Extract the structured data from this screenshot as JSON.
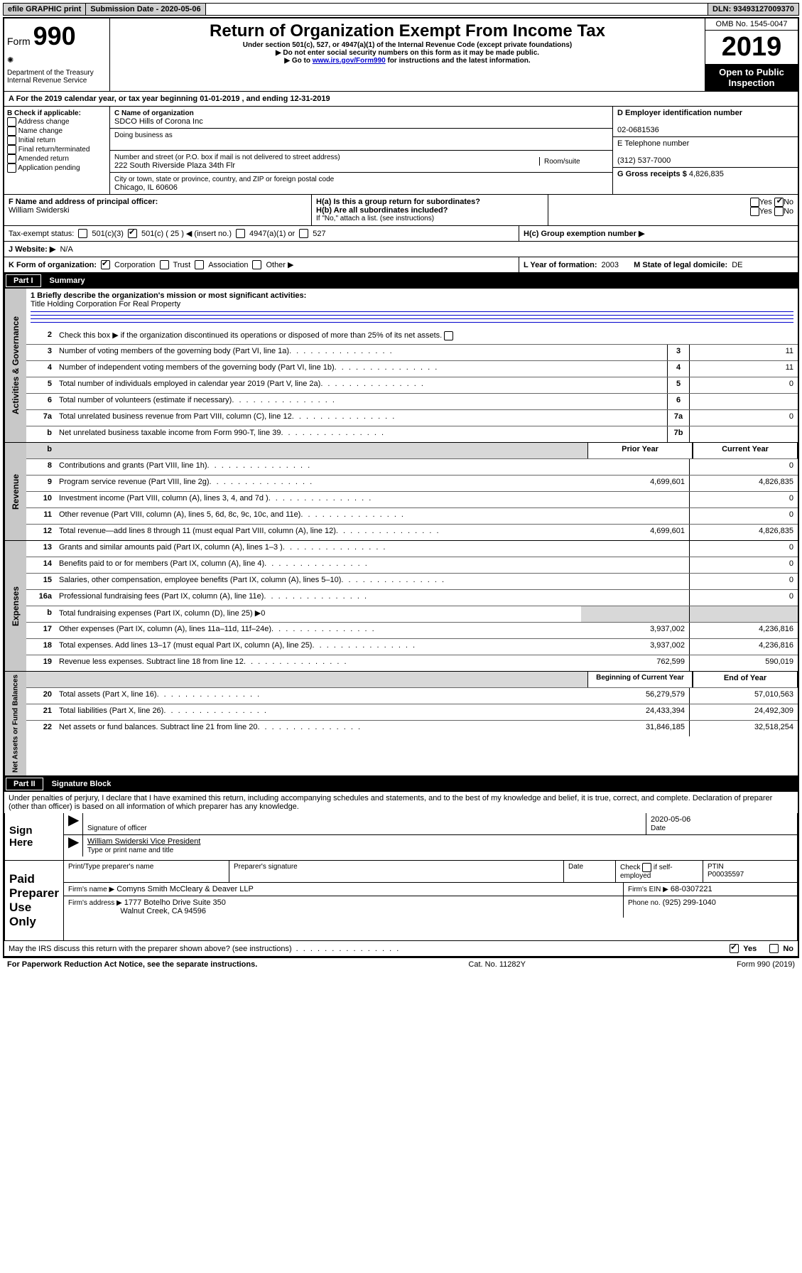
{
  "topbar": {
    "efile": "efile GRAPHIC print",
    "submission_label": "Submission Date - 2020-05-06",
    "dln_label": "DLN: 93493127009370"
  },
  "header": {
    "form_label": "Form",
    "form_number": "990",
    "dept": "Department of the Treasury",
    "irs": "Internal Revenue Service",
    "title": "Return of Organization Exempt From Income Tax",
    "subtitle": "Under section 501(c), 527, or 4947(a)(1) of the Internal Revenue Code (except private foundations)",
    "note1": "▶ Do not enter social security numbers on this form as it may be made public.",
    "note2a": "▶ Go to ",
    "note2_link": "www.irs.gov/Form990",
    "note2b": " for instructions and the latest information.",
    "omb": "OMB No. 1545-0047",
    "year": "2019",
    "open": "Open to Public Inspection"
  },
  "line_a": "A For the 2019 calendar year, or tax year beginning 01-01-2019   , and ending 12-31-2019",
  "box_b": {
    "title": "B Check if applicable:",
    "opts": [
      "Address change",
      "Name change",
      "Initial return",
      "Final return/terminated",
      "Amended return",
      "Application pending"
    ]
  },
  "box_c": {
    "label_name": "C Name of organization",
    "name": "SDCO Hills of Corona Inc",
    "dba_label": "Doing business as",
    "addr_label": "Number and street (or P.O. box if mail is not delivered to street address)",
    "room": "Room/suite",
    "addr": "222 South Riverside Plaza 34th Flr",
    "city_label": "City or town, state or province, country, and ZIP or foreign postal code",
    "city": "Chicago, IL  60606"
  },
  "box_d": {
    "label": "D Employer identification number",
    "val": "02-0681536"
  },
  "box_e": {
    "label": "E Telephone number",
    "val": "(312) 537-7000"
  },
  "box_g": {
    "label": "G Gross receipts $",
    "val": "4,826,835"
  },
  "box_f": {
    "label": "F  Name and address of principal officer:",
    "val": "William Swiderski"
  },
  "box_h": {
    "ha": "H(a)  Is this a group return for subordinates?",
    "hb": "H(b)  Are all subordinates included?",
    "hb_note": "If \"No,\" attach a list. (see instructions)",
    "hc": "H(c)  Group exemption number ▶",
    "yes": "Yes",
    "no": "No"
  },
  "tax_exempt": {
    "label": "Tax-exempt status:",
    "c3": "501(c)(3)",
    "c_ins": "501(c) ( 25 ) ◀ (insert no.)",
    "a1": "4947(a)(1) or",
    "s527": "527"
  },
  "website": {
    "label": "J   Website: ▶",
    "val": "N/A"
  },
  "line_k": {
    "label": "K Form of organization:",
    "opts": [
      "Corporation",
      "Trust",
      "Association",
      "Other ▶"
    ]
  },
  "line_l": {
    "label": "L Year of formation:",
    "val": "2003"
  },
  "line_m": {
    "label": "M State of legal domicile:",
    "val": "DE"
  },
  "part1": {
    "label": "Part I",
    "title": "Summary"
  },
  "summary": {
    "vert1": "Activities & Governance",
    "q1_label": "1  Briefly describe the organization's mission or most significant activities:",
    "q1_val": "Title Holding Corporation For Real Property",
    "q2": "Check this box ▶        if the organization discontinued its operations or disposed of more than 25% of its net assets.",
    "lines_gov": [
      {
        "n": "3",
        "t": "Number of voting members of the governing body (Part VI, line 1a)",
        "ln": "3",
        "v": "11"
      },
      {
        "n": "4",
        "t": "Number of independent voting members of the governing body (Part VI, line 1b)",
        "ln": "4",
        "v": "11"
      },
      {
        "n": "5",
        "t": "Total number of individuals employed in calendar year 2019 (Part V, line 2a)",
        "ln": "5",
        "v": "0"
      },
      {
        "n": "6",
        "t": "Total number of volunteers (estimate if necessary)",
        "ln": "6",
        "v": ""
      },
      {
        "n": "7a",
        "t": "Total unrelated business revenue from Part VIII, column (C), line 12",
        "ln": "7a",
        "v": "0"
      },
      {
        "n": "b",
        "t": "Net unrelated business taxable income from Form 990-T, line 39",
        "ln": "7b",
        "v": ""
      }
    ],
    "vert2": "Revenue",
    "col_prior": "Prior Year",
    "col_current": "Current Year",
    "lines_rev": [
      {
        "n": "8",
        "t": "Contributions and grants (Part VIII, line 1h)",
        "p": "",
        "c": "0"
      },
      {
        "n": "9",
        "t": "Program service revenue (Part VIII, line 2g)",
        "p": "4,699,601",
        "c": "4,826,835"
      },
      {
        "n": "10",
        "t": "Investment income (Part VIII, column (A), lines 3, 4, and 7d )",
        "p": "",
        "c": "0"
      },
      {
        "n": "11",
        "t": "Other revenue (Part VIII, column (A), lines 5, 6d, 8c, 9c, 10c, and 11e)",
        "p": "",
        "c": "0"
      },
      {
        "n": "12",
        "t": "Total revenue—add lines 8 through 11 (must equal Part VIII, column (A), line 12)",
        "p": "4,699,601",
        "c": "4,826,835"
      }
    ],
    "vert3": "Expenses",
    "lines_exp": [
      {
        "n": "13",
        "t": "Grants and similar amounts paid (Part IX, column (A), lines 1–3 )",
        "p": "",
        "c": "0"
      },
      {
        "n": "14",
        "t": "Benefits paid to or for members (Part IX, column (A), line 4)",
        "p": "",
        "c": "0"
      },
      {
        "n": "15",
        "t": "Salaries, other compensation, employee benefits (Part IX, column (A), lines 5–10)",
        "p": "",
        "c": "0"
      },
      {
        "n": "16a",
        "t": "Professional fundraising fees (Part IX, column (A), line 11e)",
        "p": "",
        "c": "0"
      },
      {
        "n": "b",
        "t": "Total fundraising expenses (Part IX, column (D), line 25) ▶0",
        "shade": true
      },
      {
        "n": "17",
        "t": "Other expenses (Part IX, column (A), lines 11a–11d, 11f–24e)",
        "p": "3,937,002",
        "c": "4,236,816"
      },
      {
        "n": "18",
        "t": "Total expenses. Add lines 13–17 (must equal Part IX, column (A), line 25)",
        "p": "3,937,002",
        "c": "4,236,816"
      },
      {
        "n": "19",
        "t": "Revenue less expenses. Subtract line 18 from line 12",
        "p": "762,599",
        "c": "590,019"
      }
    ],
    "vert4": "Net Assets or Fund Balances",
    "col_begin": "Beginning of Current Year",
    "col_end": "End of Year",
    "lines_net": [
      {
        "n": "20",
        "t": "Total assets (Part X, line 16)",
        "p": "56,279,579",
        "c": "57,010,563"
      },
      {
        "n": "21",
        "t": "Total liabilities (Part X, line 26)",
        "p": "24,433,394",
        "c": "24,492,309"
      },
      {
        "n": "22",
        "t": "Net assets or fund balances. Subtract line 21 from line 20",
        "p": "31,846,185",
        "c": "32,518,254"
      }
    ]
  },
  "part2": {
    "label": "Part II",
    "title": "Signature Block"
  },
  "perjury": "Under penalties of perjury, I declare that I have examined this return, including accompanying schedules and statements, and to the best of my knowledge and belief, it is true, correct, and complete. Declaration of preparer (other than officer) is based on all information of which preparer has any knowledge.",
  "sign": {
    "here": "Sign Here",
    "sig_officer": "Signature of officer",
    "date": "2020-05-06",
    "date_label": "Date",
    "name": "William Swiderski  Vice President",
    "name_label": "Type or print name and title"
  },
  "preparer": {
    "left": "Paid Preparer Use Only",
    "col1": "Print/Type preparer's name",
    "col2": "Preparer's signature",
    "col3": "Date",
    "col4a": "Check",
    "col4b": "if self-employed",
    "ptin_label": "PTIN",
    "ptin": "P00035597",
    "firm_name_label": "Firm's name    ▶",
    "firm_name": "Comyns Smith McCleary & Deaver LLP",
    "firm_ein_label": "Firm's EIN ▶",
    "firm_ein": "68-0307221",
    "firm_addr_label": "Firm's address ▶",
    "firm_addr1": "1777 Botelho Drive Suite 350",
    "firm_addr2": "Walnut Creek, CA  94596",
    "phone_label": "Phone no.",
    "phone": "(925) 299-1040"
  },
  "discuss": {
    "q": "May the IRS discuss this return with the preparer shown above? (see instructions)",
    "yes": "Yes",
    "no": "No"
  },
  "footer": {
    "left": "For Paperwork Reduction Act Notice, see the separate instructions.",
    "mid": "Cat. No. 11282Y",
    "right": "Form 990 (2019)"
  }
}
